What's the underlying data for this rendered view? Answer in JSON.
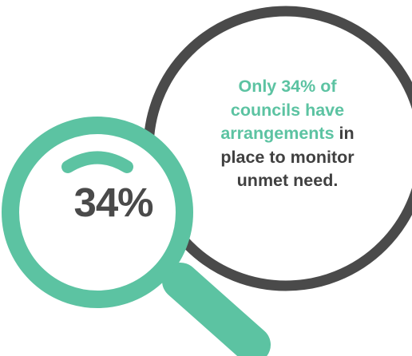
{
  "colors": {
    "accent": "#5cc3a2",
    "dark": "#4a4a4a",
    "background": "#ffffff"
  },
  "magnifier": {
    "stat_value": "34%"
  },
  "callout": {
    "line1": "Only 34% of",
    "line2": "councils have",
    "line3_highlight": "arrangements",
    "line3_rest": " in",
    "line4": "place to monitor",
    "line5": "unmet need."
  }
}
